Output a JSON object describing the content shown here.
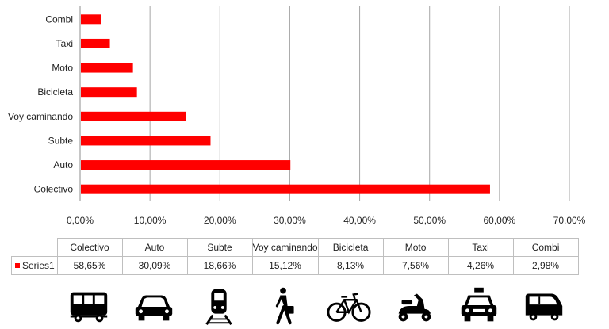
{
  "chart_data": {
    "type": "bar",
    "orientation": "horizontal",
    "categories": [
      "Combi",
      "Taxi",
      "Moto",
      "Bicicleta",
      "Voy caminando",
      "Subte",
      "Auto",
      "Colectivo"
    ],
    "series": [
      {
        "name": "Series1",
        "values": [
          2.98,
          4.26,
          7.56,
          8.13,
          15.12,
          18.66,
          30.09,
          58.65
        ],
        "color": "#ff0000"
      }
    ],
    "xlim": [
      0,
      70
    ],
    "x_ticks": [
      "0,00%",
      "10,00%",
      "20,00%",
      "30,00%",
      "40,00%",
      "50,00%",
      "60,00%",
      "70,00%"
    ],
    "grid": true,
    "grid_color": "#a6a6a6",
    "table": {
      "columns": [
        "Colectivo",
        "Auto",
        "Subte",
        "Voy caminando",
        "Bicicleta",
        "Moto",
        "Taxi",
        "Combi"
      ],
      "row_label": "Series1",
      "values": [
        "58,65%",
        "30,09%",
        "18,66%",
        "15,12%",
        "8,13%",
        "7,56%",
        "4,26%",
        "2,98%"
      ]
    },
    "icons": [
      "bus-icon",
      "car-icon",
      "train-icon",
      "pedestrian-icon",
      "bicycle-icon",
      "scooter-icon",
      "taxi-icon",
      "van-icon"
    ]
  }
}
